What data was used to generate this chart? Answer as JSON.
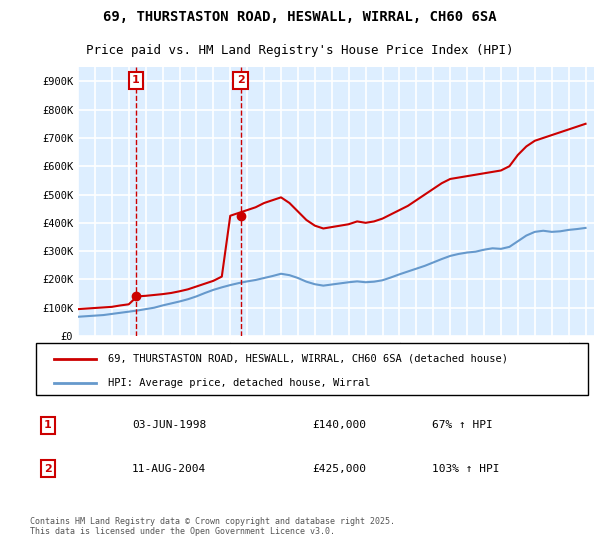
{
  "title": "69, THURSTASTON ROAD, HESWALL, WIRRAL, CH60 6SA",
  "subtitle": "Price paid vs. HM Land Registry's House Price Index (HPI)",
  "legend_label_red": "69, THURSTASTON ROAD, HESWALL, WIRRAL, CH60 6SA (detached house)",
  "legend_label_blue": "HPI: Average price, detached house, Wirral",
  "annotation1_label": "1",
  "annotation1_date": "03-JUN-1998",
  "annotation1_price": "£140,000",
  "annotation1_hpi": "67% ↑ HPI",
  "annotation2_label": "2",
  "annotation2_date": "11-AUG-2004",
  "annotation2_price": "£425,000",
  "annotation2_hpi": "103% ↑ HPI",
  "footer": "Contains HM Land Registry data © Crown copyright and database right 2025.\nThis data is licensed under the Open Government Licence v3.0.",
  "red_color": "#cc0000",
  "blue_color": "#6699cc",
  "background_color": "#ddeeff",
  "plot_bg_color": "#ddeeff",
  "grid_color": "#ffffff",
  "ylim": [
    0,
    950000
  ],
  "yticks": [
    0,
    100000,
    200000,
    300000,
    400000,
    500000,
    600000,
    700000,
    800000,
    900000
  ],
  "ytick_labels": [
    "£0",
    "£100K",
    "£200K",
    "£300K",
    "£400K",
    "£500K",
    "£600K",
    "£700K",
    "£800K",
    "£900K"
  ],
  "sale1_x": 1998.42,
  "sale1_y": 140000,
  "sale2_x": 2004.61,
  "sale2_y": 425000,
  "vline1_x": 1998.42,
  "vline2_x": 2004.61,
  "xmin": 1995,
  "xmax": 2025.5,
  "red_line_x": [
    1995.0,
    1995.5,
    1996.0,
    1996.5,
    1997.0,
    1997.5,
    1998.0,
    1998.5,
    1999.0,
    1999.5,
    2000.0,
    2000.5,
    2001.0,
    2001.5,
    2002.0,
    2002.5,
    2003.0,
    2003.5,
    2004.0,
    2004.5,
    2005.0,
    2005.5,
    2006.0,
    2006.5,
    2007.0,
    2007.5,
    2008.0,
    2008.5,
    2009.0,
    2009.5,
    2010.0,
    2010.5,
    2011.0,
    2011.5,
    2012.0,
    2012.5,
    2013.0,
    2013.5,
    2014.0,
    2014.5,
    2015.0,
    2015.5,
    2016.0,
    2016.5,
    2017.0,
    2017.5,
    2018.0,
    2018.5,
    2019.0,
    2019.5,
    2020.0,
    2020.5,
    2021.0,
    2021.5,
    2022.0,
    2022.5,
    2023.0,
    2023.5,
    2024.0,
    2024.5,
    2025.0
  ],
  "red_line_y": [
    95000,
    97000,
    99000,
    101000,
    103000,
    108000,
    112000,
    140000,
    142000,
    145000,
    148000,
    152000,
    158000,
    165000,
    175000,
    185000,
    195000,
    210000,
    425000,
    435000,
    445000,
    455000,
    470000,
    480000,
    490000,
    470000,
    440000,
    410000,
    390000,
    380000,
    385000,
    390000,
    395000,
    405000,
    400000,
    405000,
    415000,
    430000,
    445000,
    460000,
    480000,
    500000,
    520000,
    540000,
    555000,
    560000,
    565000,
    570000,
    575000,
    580000,
    585000,
    600000,
    640000,
    670000,
    690000,
    700000,
    710000,
    720000,
    730000,
    740000,
    750000
  ],
  "blue_line_x": [
    1995.0,
    1995.5,
    1996.0,
    1996.5,
    1997.0,
    1997.5,
    1998.0,
    1998.5,
    1999.0,
    1999.5,
    2000.0,
    2000.5,
    2001.0,
    2001.5,
    2002.0,
    2002.5,
    2003.0,
    2003.5,
    2004.0,
    2004.5,
    2005.0,
    2005.5,
    2006.0,
    2006.5,
    2007.0,
    2007.5,
    2008.0,
    2008.5,
    2009.0,
    2009.5,
    2010.0,
    2010.5,
    2011.0,
    2011.5,
    2012.0,
    2012.5,
    2013.0,
    2013.5,
    2014.0,
    2014.5,
    2015.0,
    2015.5,
    2016.0,
    2016.5,
    2017.0,
    2017.5,
    2018.0,
    2018.5,
    2019.0,
    2019.5,
    2020.0,
    2020.5,
    2021.0,
    2021.5,
    2022.0,
    2022.5,
    2023.0,
    2023.5,
    2024.0,
    2024.5,
    2025.0
  ],
  "blue_line_y": [
    68000,
    70000,
    72000,
    74000,
    78000,
    82000,
    86000,
    90000,
    95000,
    100000,
    108000,
    115000,
    122000,
    130000,
    140000,
    152000,
    163000,
    172000,
    180000,
    187000,
    193000,
    198000,
    205000,
    212000,
    220000,
    215000,
    205000,
    192000,
    183000,
    178000,
    182000,
    186000,
    190000,
    193000,
    190000,
    192000,
    197000,
    207000,
    218000,
    228000,
    238000,
    248000,
    260000,
    272000,
    283000,
    290000,
    295000,
    298000,
    305000,
    310000,
    308000,
    315000,
    335000,
    355000,
    368000,
    372000,
    368000,
    370000,
    375000,
    378000,
    382000
  ]
}
